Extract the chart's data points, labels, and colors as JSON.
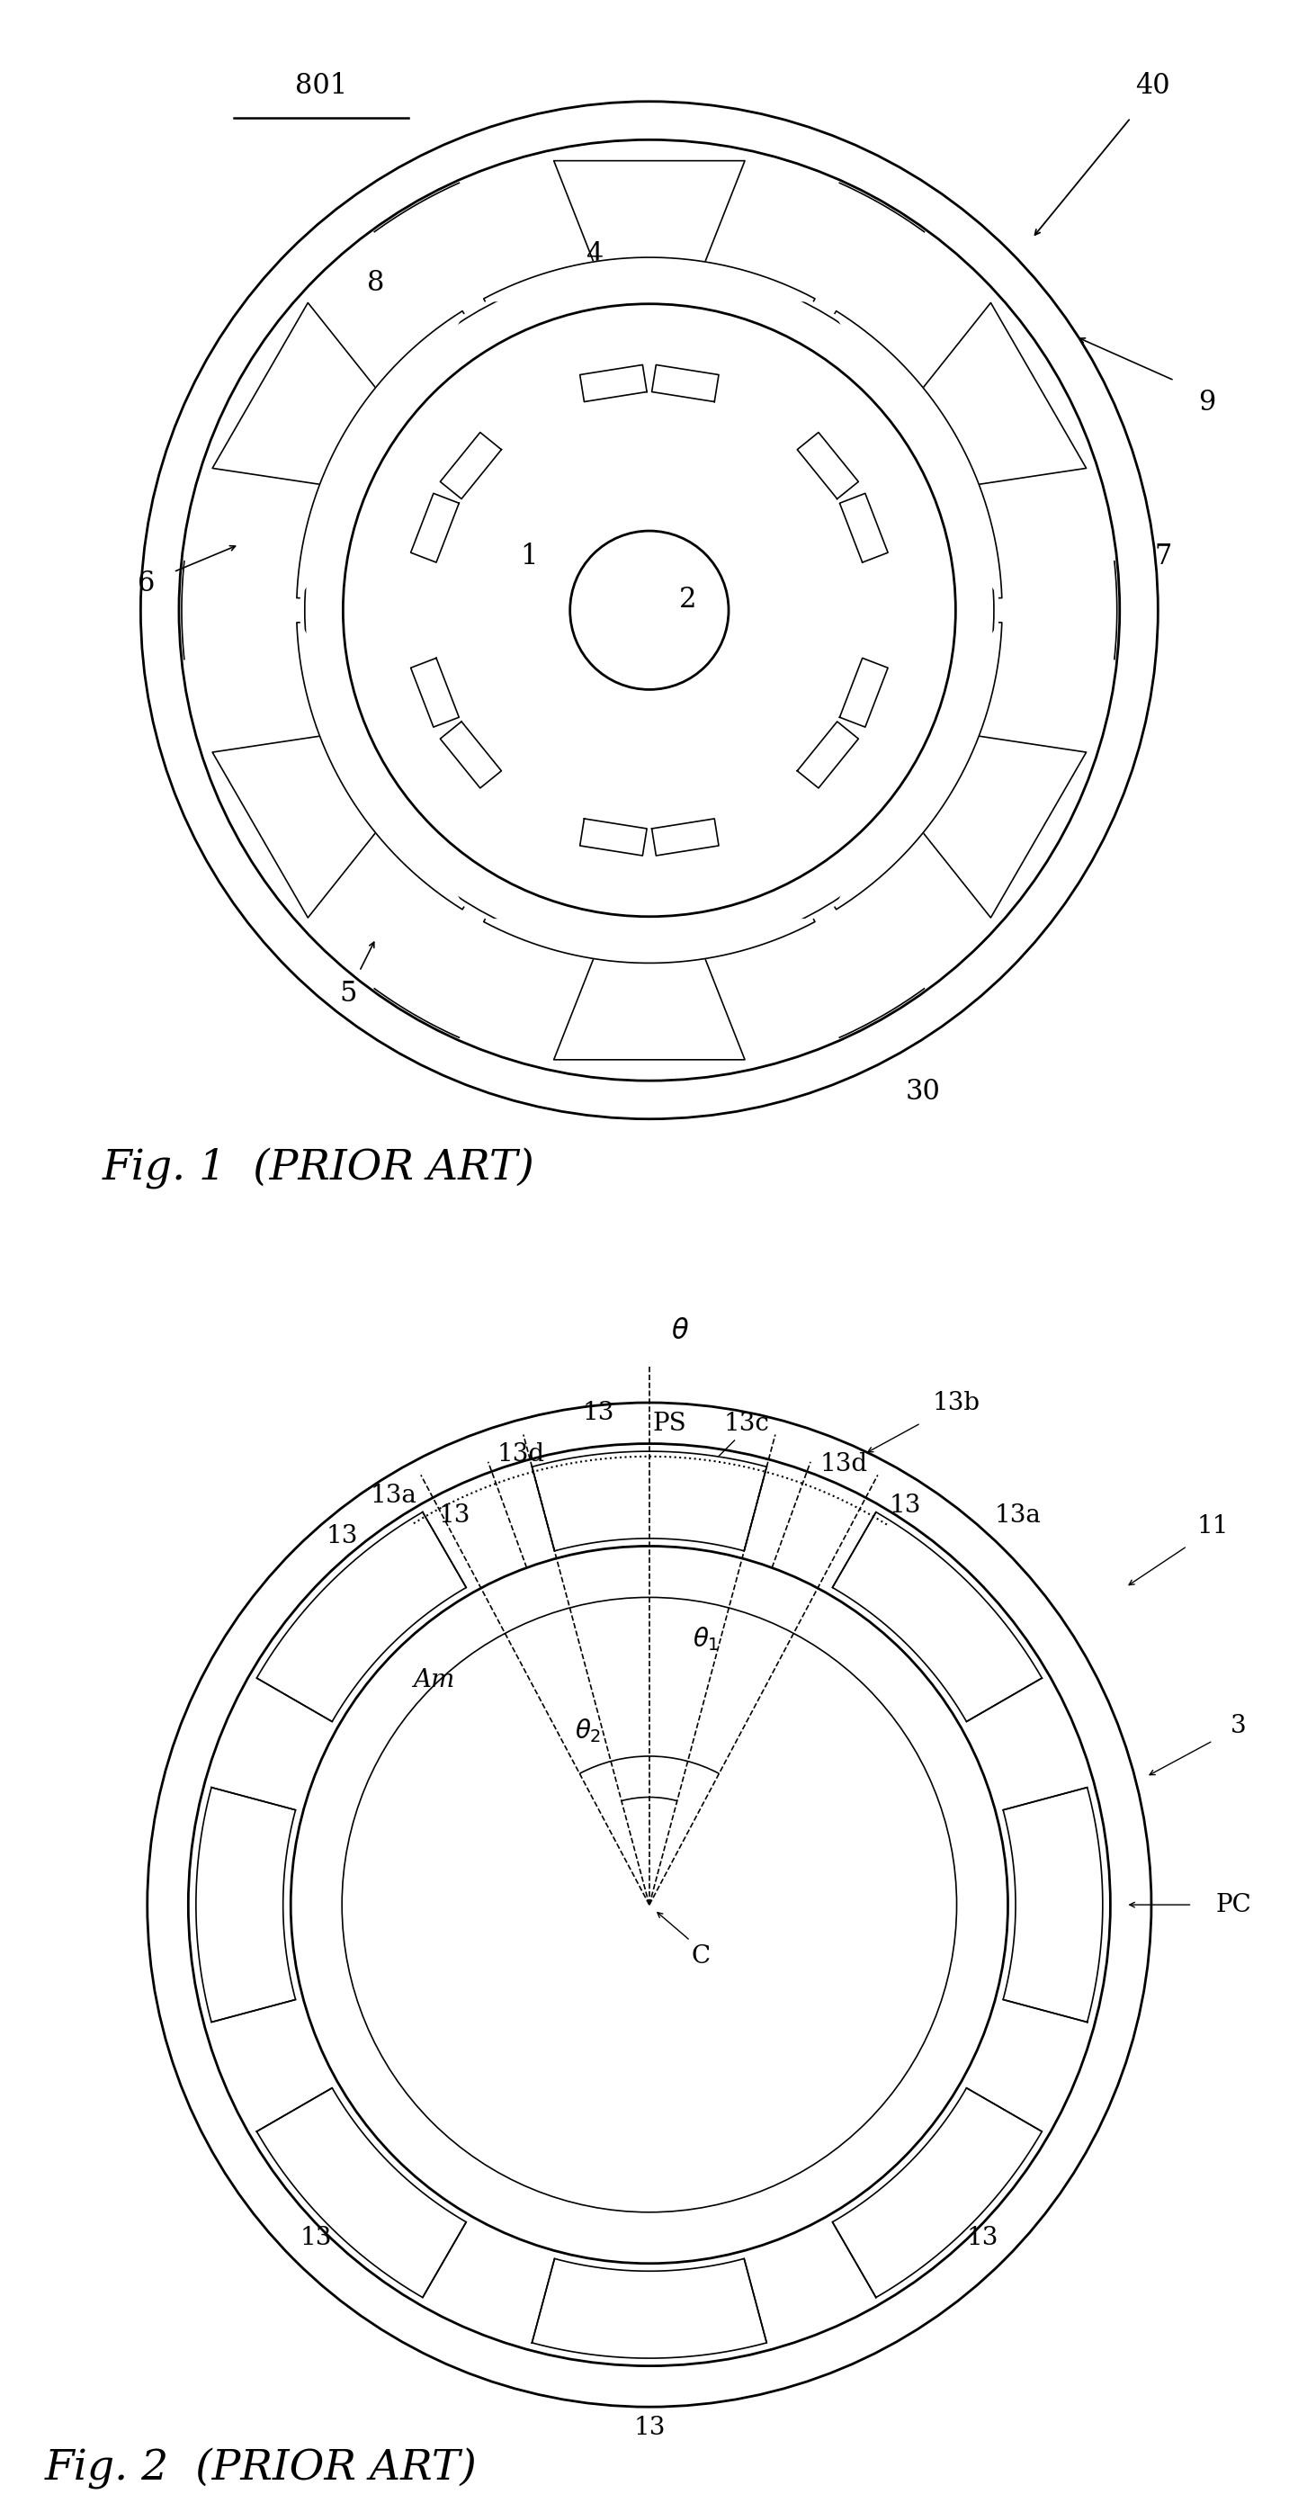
{
  "fig_width": 16.11,
  "fig_height": 29.08,
  "bg_color": "#ffffff",
  "line_color": "#000000",
  "lw_main": 2.0,
  "lw_thin": 1.2,
  "caption1": "Fig. 1  (PRIOR ART)",
  "caption2": "Fig. 2  (PRIOR ART)",
  "label_801": "801",
  "label_40": "40",
  "label_9": "9",
  "label_8": "8",
  "label_4": "4",
  "label_1": "1",
  "label_2": "2",
  "label_3": "3",
  "label_7": "7",
  "label_6": "6",
  "label_5": "5",
  "label_30": "30",
  "n_poles": 6,
  "n_magnets": 8
}
